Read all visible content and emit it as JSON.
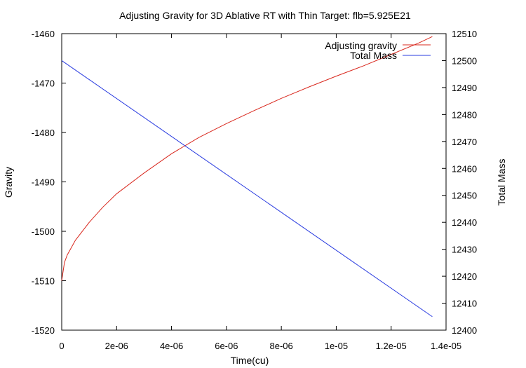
{
  "chart_data": {
    "type": "line",
    "title": "Adjusting Gravity for 3D Ablative RT with Thin Target: flb=5.925E21",
    "xlabel": "Time(cu)",
    "ylabel": "Gravity",
    "y2label": "Total Mass",
    "xlim": [
      0,
      1.4e-05
    ],
    "ylim": [
      -1520,
      -1460
    ],
    "y2lim": [
      12400,
      12510
    ],
    "x_ticks": [
      "0",
      "2e-06",
      "4e-06",
      "6e-06",
      "8e-06",
      "1e-05",
      "1.2e-05",
      "1.4e-05"
    ],
    "y_ticks": [
      "-1460",
      "-1470",
      "-1480",
      "-1490",
      "-1500",
      "-1510",
      "-1520"
    ],
    "y2_ticks": [
      "12510",
      "12500",
      "12490",
      "12480",
      "12470",
      "12460",
      "12450",
      "12440",
      "12430",
      "12420",
      "12410",
      "12400"
    ],
    "legend_position": "top-right",
    "grid": false,
    "series": [
      {
        "name": "Adjusting gravity",
        "axis": "left",
        "color": "#d9281e",
        "x": [
          0,
          1e-07,
          2e-07,
          5e-07,
          1e-06,
          1.5e-06,
          2e-06,
          3e-06,
          4e-06,
          5e-06,
          6e-06,
          7e-06,
          8e-06,
          9e-06,
          1e-05,
          1.1e-05,
          1.2e-05,
          1.3e-05,
          1.35e-05
        ],
        "y": [
          -1510,
          -1506.3,
          -1504.8,
          -1501.8,
          -1498.2,
          -1495.1,
          -1492.4,
          -1488.2,
          -1484.3,
          -1481,
          -1478.2,
          -1475.6,
          -1473.1,
          -1470.8,
          -1468.6,
          -1466.5,
          -1464.2,
          -1461.9,
          -1460.6
        ]
      },
      {
        "name": "Total Mass",
        "axis": "right",
        "color": "#2a3ce0",
        "x": [
          0,
          1.35e-05
        ],
        "y": [
          12500,
          12405
        ]
      }
    ]
  }
}
